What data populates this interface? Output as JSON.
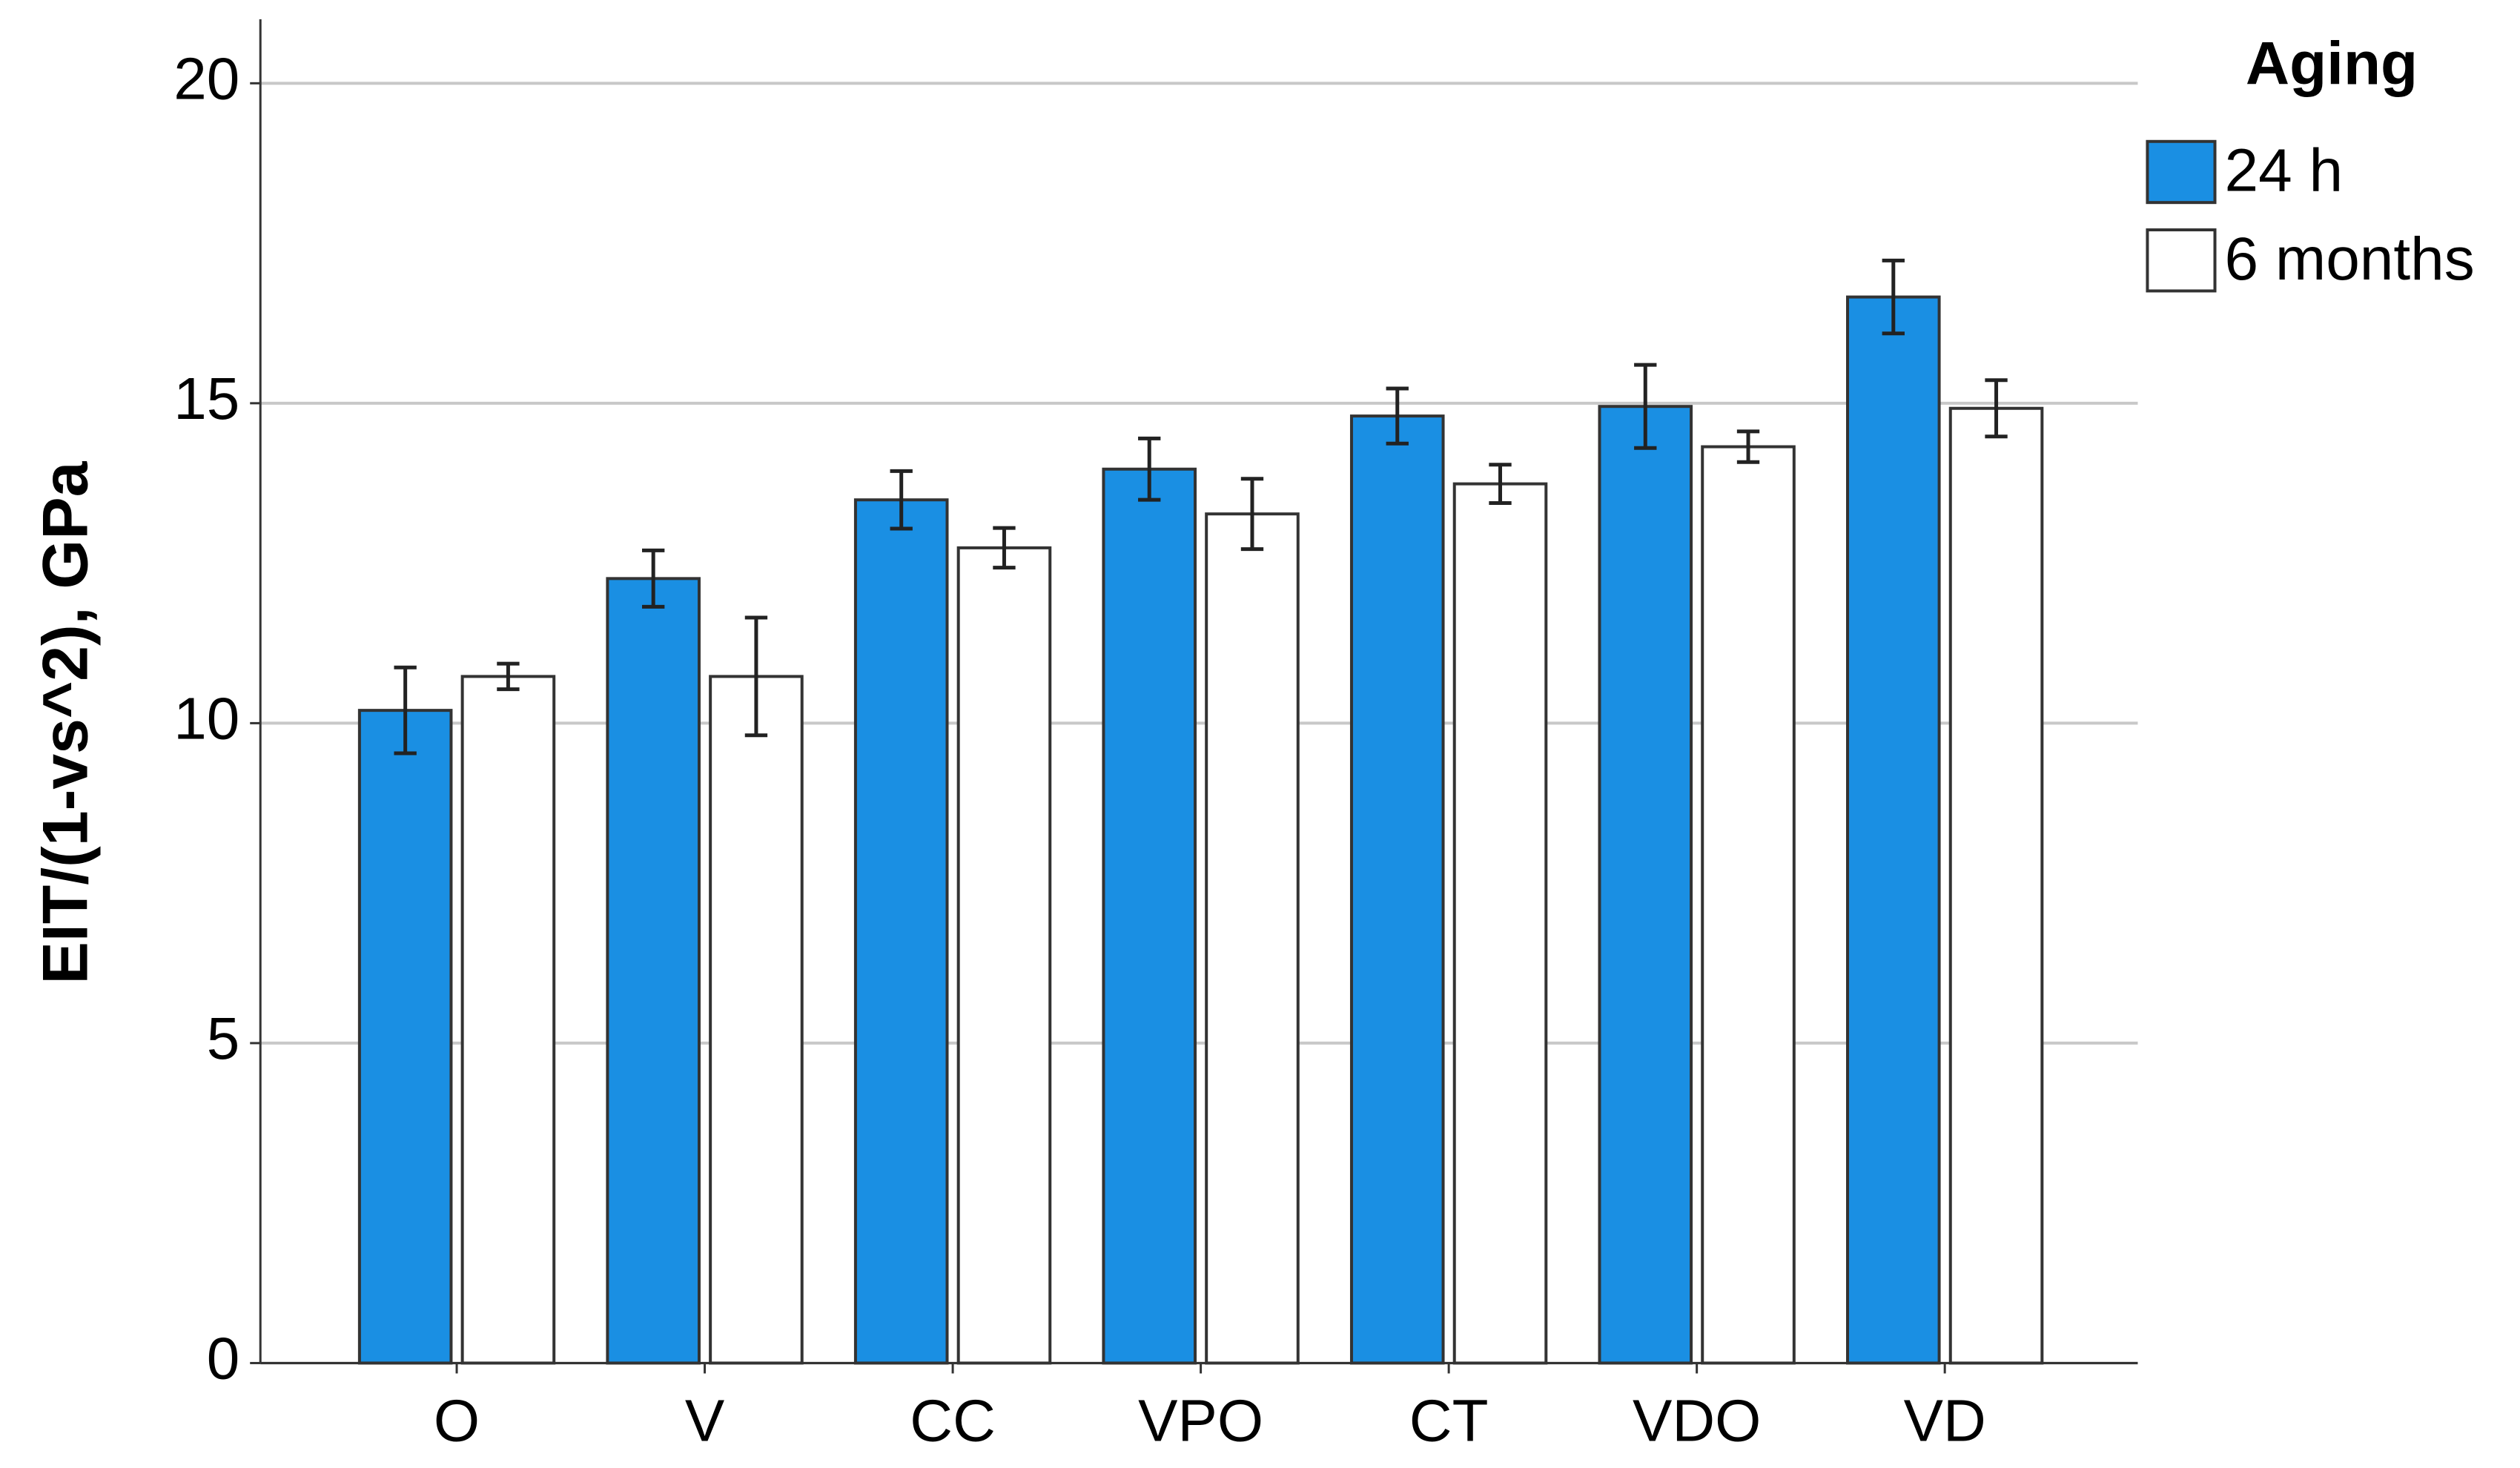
{
  "chart_data": {
    "type": "bar",
    "y_label": "EIT/(1-vs^2), GPa",
    "legend_title": "Aging",
    "legend_position": "upper right outside",
    "categories": [
      "O",
      "V",
      "CC",
      "VPO",
      "CT",
      "VDO",
      "VD"
    ],
    "series": [
      {
        "name": "24 h",
        "color": "#1a8fe3",
        "values": [
          10.2,
          12.26,
          13.49,
          13.97,
          14.8,
          14.95,
          16.66
        ],
        "errors": [
          0.67,
          0.44,
          0.45,
          0.48,
          0.43,
          0.65,
          0.57
        ]
      },
      {
        "name": "6 months",
        "color": "#ffffff",
        "values": [
          10.73,
          10.73,
          12.74,
          13.27,
          13.74,
          14.32,
          14.92
        ],
        "errors": [
          0.2,
          0.92,
          0.31,
          0.55,
          0.3,
          0.24,
          0.44
        ]
      }
    ],
    "ylim": [
      0,
      21
    ],
    "yticks": [
      0,
      5,
      10,
      15,
      20
    ],
    "grid": true
  }
}
